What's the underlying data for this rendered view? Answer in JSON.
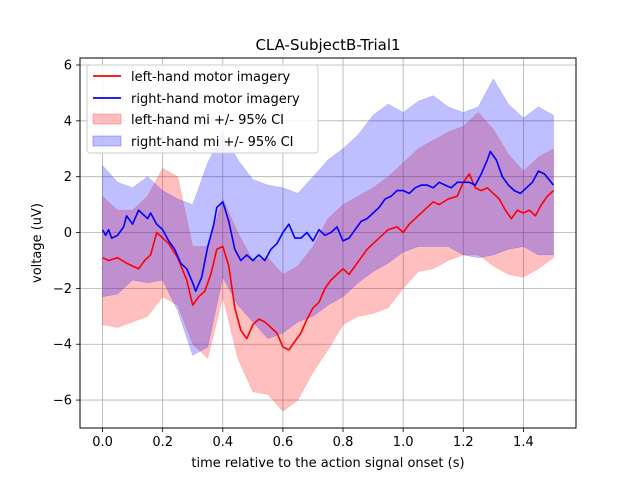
{
  "chart_data": {
    "type": "line",
    "title": "CLA-SubjectB-Trial1",
    "xlabel": "time relative to the action signal onset (s)",
    "ylabel": "voltage (uV)",
    "xlim": [
      -0.075,
      1.575
    ],
    "ylim": [
      -7.0,
      6.25
    ],
    "xticks": [
      0.0,
      0.2,
      0.4,
      0.6,
      0.8,
      1.0,
      1.2,
      1.4
    ],
    "xtick_labels": [
      "0.0",
      "0.2",
      "0.4",
      "0.6",
      "0.8",
      "1.0",
      "1.2",
      "1.4"
    ],
    "yticks": [
      -6,
      -4,
      -2,
      0,
      2,
      4,
      6
    ],
    "ytick_labels": [
      "−6",
      "−4",
      "−2",
      "0",
      "2",
      "4",
      "6"
    ],
    "grid": true,
    "legend_position": "top-left",
    "series": [
      {
        "name": "left-hand motor imagery",
        "kind": "line",
        "color": "#ff0000",
        "x": [
          0.0,
          0.02,
          0.05,
          0.08,
          0.1,
          0.12,
          0.14,
          0.16,
          0.18,
          0.2,
          0.22,
          0.25,
          0.28,
          0.3,
          0.32,
          0.34,
          0.36,
          0.38,
          0.4,
          0.42,
          0.44,
          0.46,
          0.48,
          0.5,
          0.52,
          0.54,
          0.56,
          0.58,
          0.6,
          0.62,
          0.64,
          0.66,
          0.68,
          0.7,
          0.72,
          0.74,
          0.76,
          0.78,
          0.8,
          0.82,
          0.84,
          0.86,
          0.88,
          0.9,
          0.92,
          0.95,
          0.98,
          1.0,
          1.02,
          1.05,
          1.08,
          1.1,
          1.12,
          1.15,
          1.18,
          1.2,
          1.22,
          1.24,
          1.26,
          1.28,
          1.3,
          1.32,
          1.34,
          1.36,
          1.38,
          1.4,
          1.42,
          1.44,
          1.46,
          1.48,
          1.5
        ],
        "y": [
          -0.9,
          -1.0,
          -0.9,
          -1.1,
          -1.2,
          -1.3,
          -1.0,
          -0.8,
          0.0,
          -0.2,
          -0.4,
          -0.9,
          -1.7,
          -2.6,
          -2.3,
          -2.1,
          -1.5,
          -0.6,
          -0.5,
          -1.2,
          -2.7,
          -3.5,
          -3.8,
          -3.3,
          -3.1,
          -3.2,
          -3.4,
          -3.6,
          -4.1,
          -4.2,
          -3.9,
          -3.6,
          -3.1,
          -2.7,
          -2.5,
          -2.0,
          -1.7,
          -1.5,
          -1.3,
          -1.5,
          -1.2,
          -0.9,
          -0.6,
          -0.4,
          -0.2,
          0.1,
          0.2,
          0.0,
          0.3,
          0.6,
          0.9,
          1.1,
          1.0,
          1.2,
          1.3,
          1.8,
          2.1,
          1.6,
          1.5,
          1.6,
          1.4,
          1.2,
          0.8,
          0.5,
          0.8,
          0.7,
          0.8,
          0.6,
          1.0,
          1.3,
          1.5
        ]
      },
      {
        "name": "right-hand motor imagery",
        "kind": "line",
        "color": "#0000ff",
        "x": [
          0.0,
          0.01,
          0.02,
          0.03,
          0.05,
          0.07,
          0.08,
          0.1,
          0.12,
          0.13,
          0.15,
          0.16,
          0.18,
          0.2,
          0.22,
          0.24,
          0.26,
          0.28,
          0.3,
          0.31,
          0.33,
          0.35,
          0.37,
          0.38,
          0.4,
          0.42,
          0.44,
          0.46,
          0.48,
          0.5,
          0.52,
          0.54,
          0.56,
          0.58,
          0.6,
          0.62,
          0.64,
          0.66,
          0.68,
          0.7,
          0.72,
          0.74,
          0.76,
          0.78,
          0.8,
          0.82,
          0.84,
          0.86,
          0.88,
          0.9,
          0.92,
          0.94,
          0.96,
          0.98,
          1.0,
          1.02,
          1.04,
          1.06,
          1.08,
          1.1,
          1.12,
          1.14,
          1.16,
          1.18,
          1.2,
          1.22,
          1.24,
          1.26,
          1.28,
          1.29,
          1.31,
          1.33,
          1.35,
          1.37,
          1.39,
          1.41,
          1.43,
          1.45,
          1.47,
          1.5
        ],
        "y": [
          0.1,
          -0.1,
          0.1,
          -0.2,
          -0.1,
          0.2,
          0.6,
          0.3,
          0.8,
          0.7,
          0.5,
          0.7,
          0.3,
          0.1,
          -0.3,
          -0.6,
          -1.1,
          -1.3,
          -1.8,
          -2.1,
          -1.6,
          -0.5,
          0.3,
          0.9,
          1.1,
          0.4,
          -0.6,
          -1.0,
          -0.8,
          -1.0,
          -0.8,
          -1.0,
          -0.6,
          -0.4,
          0.0,
          0.3,
          -0.2,
          -0.2,
          0.0,
          -0.3,
          0.1,
          -0.1,
          0.0,
          0.2,
          -0.3,
          -0.2,
          0.1,
          0.4,
          0.5,
          0.7,
          0.9,
          1.2,
          1.3,
          1.5,
          1.5,
          1.4,
          1.6,
          1.7,
          1.7,
          1.6,
          1.8,
          1.7,
          1.6,
          1.8,
          1.8,
          1.8,
          1.7,
          2.1,
          2.6,
          2.9,
          2.6,
          2.0,
          1.7,
          1.5,
          1.4,
          1.6,
          1.8,
          2.2,
          2.1,
          1.7
        ]
      },
      {
        "name": "left-hand mi +/- 95% CI",
        "kind": "band",
        "color": "#ff0000",
        "opacity": 0.25,
        "x": [
          0.0,
          0.05,
          0.1,
          0.15,
          0.2,
          0.25,
          0.3,
          0.35,
          0.4,
          0.45,
          0.5,
          0.55,
          0.6,
          0.65,
          0.7,
          0.75,
          0.8,
          0.85,
          0.9,
          0.95,
          1.0,
          1.05,
          1.1,
          1.15,
          1.2,
          1.25,
          1.3,
          1.35,
          1.4,
          1.45,
          1.5
        ],
        "upper": [
          1.3,
          0.8,
          0.8,
          1.3,
          2.3,
          2.0,
          -0.5,
          -0.5,
          1.2,
          0.0,
          -1.0,
          -0.9,
          -1.5,
          -1.2,
          -0.5,
          0.5,
          1.0,
          1.3,
          1.6,
          2.0,
          2.5,
          3.0,
          3.3,
          3.6,
          3.8,
          4.3,
          3.7,
          2.8,
          2.2,
          2.7,
          3.0
        ],
        "lower": [
          -3.3,
          -3.4,
          -3.2,
          -3.0,
          -2.3,
          -2.6,
          -4.0,
          -4.5,
          -2.3,
          -4.5,
          -5.7,
          -5.8,
          -6.4,
          -6.0,
          -5.0,
          -4.2,
          -3.3,
          -3.0,
          -2.9,
          -2.7,
          -2.0,
          -1.4,
          -1.3,
          -1.0,
          -0.8,
          -0.8,
          -1.2,
          -1.5,
          -1.6,
          -1.3,
          -0.9
        ]
      },
      {
        "name": "right-hand mi +/- 95% CI",
        "kind": "band",
        "color": "#0000ff",
        "opacity": 0.25,
        "x": [
          0.0,
          0.05,
          0.1,
          0.15,
          0.2,
          0.25,
          0.3,
          0.35,
          0.4,
          0.45,
          0.5,
          0.55,
          0.6,
          0.65,
          0.7,
          0.75,
          0.8,
          0.85,
          0.9,
          0.95,
          1.0,
          1.05,
          1.1,
          1.15,
          1.2,
          1.25,
          1.3,
          1.35,
          1.4,
          1.45,
          1.5
        ],
        "upper": [
          2.4,
          1.8,
          1.6,
          2.0,
          1.5,
          1.2,
          1.0,
          2.5,
          3.6,
          2.6,
          1.9,
          1.7,
          1.6,
          1.4,
          2.0,
          2.6,
          3.0,
          3.5,
          4.2,
          4.6,
          4.3,
          4.7,
          4.9,
          4.5,
          4.3,
          4.5,
          5.5,
          4.6,
          4.1,
          4.5,
          4.2
        ],
        "lower": [
          -2.3,
          -2.2,
          -1.7,
          -1.8,
          -1.7,
          -2.8,
          -4.4,
          -4.1,
          -1.6,
          -2.6,
          -3.2,
          -3.8,
          -3.6,
          -3.2,
          -3.0,
          -2.6,
          -2.3,
          -1.8,
          -1.4,
          -1.1,
          -0.7,
          -0.5,
          -0.5,
          -0.5,
          -0.8,
          -0.9,
          -0.8,
          -0.6,
          -0.5,
          -0.8,
          -0.8
        ]
      }
    ]
  }
}
